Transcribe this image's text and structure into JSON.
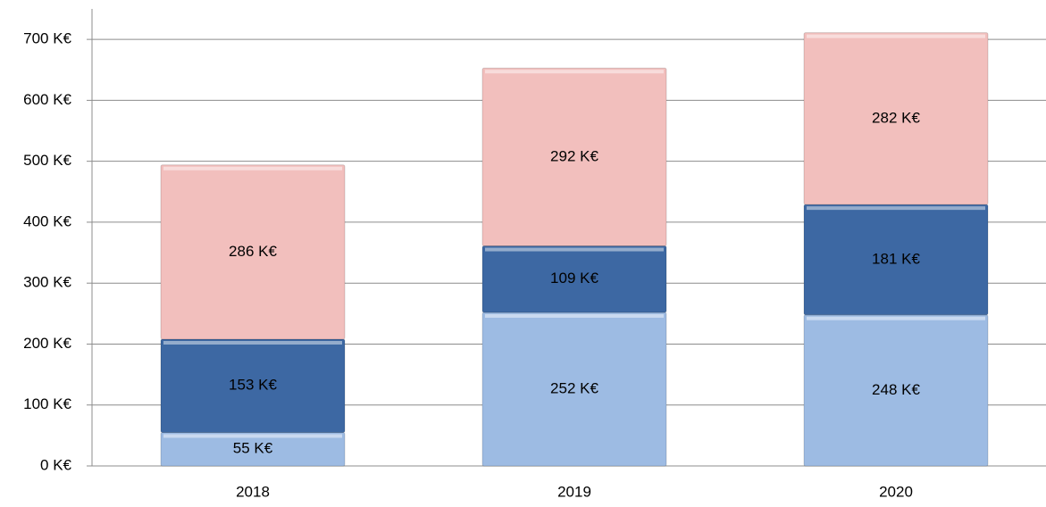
{
  "chart_data": {
    "type": "stacked_bar",
    "categories": [
      "2018",
      "2019",
      "2020"
    ],
    "series": [
      {
        "color": "#9dbbe3",
        "values": [
          55,
          252,
          248
        ],
        "value_labels": [
          "55 K€",
          "252 K€",
          "248 K€"
        ]
      },
      {
        "color": "#3d68a3",
        "values": [
          153,
          109,
          181
        ],
        "value_labels": [
          "153 K€",
          "109 K€",
          "181 K€"
        ]
      },
      {
        "color": "#f2bfbd",
        "values": [
          286,
          292,
          282
        ],
        "value_labels": [
          "286 K€",
          "292 K€",
          "282 K€"
        ]
      }
    ],
    "ylim": [
      0,
      750
    ],
    "yticks": [
      {
        "value": 0,
        "label": "0 K€"
      },
      {
        "value": 100,
        "label": "100 K€"
      },
      {
        "value": 200,
        "label": "200 K€"
      },
      {
        "value": 300,
        "label": "300 K€"
      },
      {
        "value": 400,
        "label": "400 K€"
      },
      {
        "value": 500,
        "label": "500 K€"
      },
      {
        "value": 600,
        "label": "600 K€"
      },
      {
        "value": 700,
        "label": "700 K€"
      }
    ],
    "grid": true
  }
}
